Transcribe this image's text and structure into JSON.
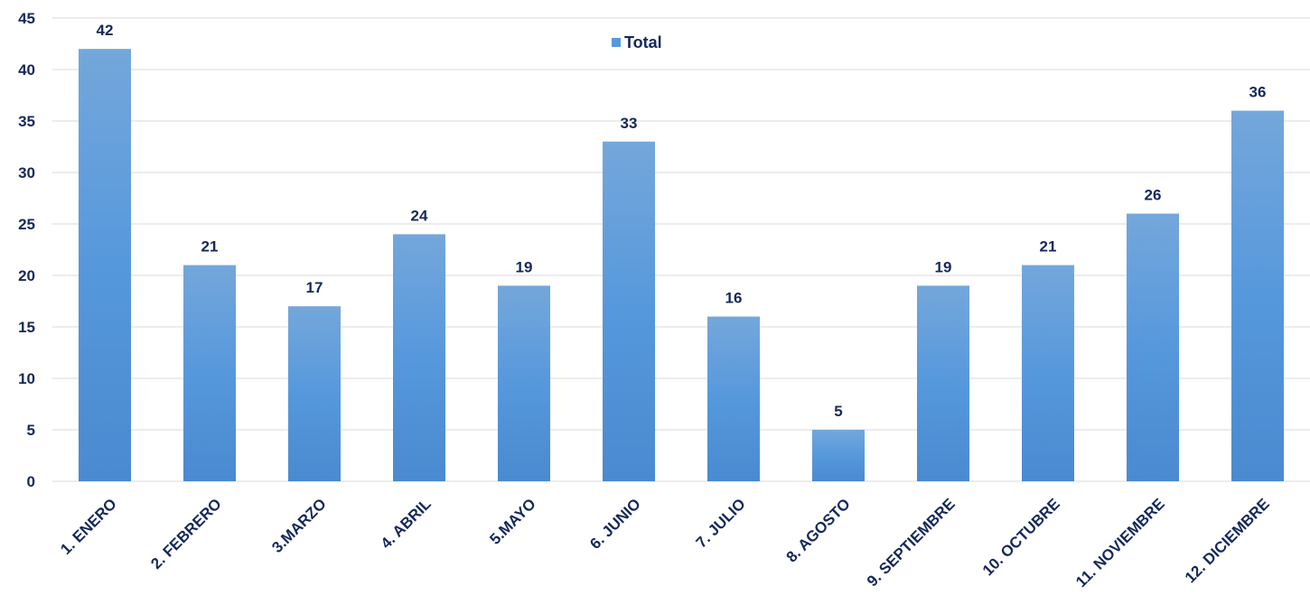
{
  "chart_data": {
    "type": "bar",
    "title": "",
    "xlabel": "",
    "ylabel": "",
    "categories": [
      "1. ENERO",
      "2. FEBRERO",
      "3.MARZO",
      "4. ABRIL",
      "5.MAYO",
      "6. JUNIO",
      "7. JULIO",
      "8. AGOSTO",
      "9. SEPTIEMBRE",
      "10. OCTUBRE",
      "11. NOVIEMBRE",
      "12. DICIEMBRE"
    ],
    "series": [
      {
        "name": "Total",
        "values": [
          42,
          21,
          17,
          24,
          19,
          33,
          16,
          5,
          19,
          21,
          26,
          36
        ]
      }
    ],
    "ylim": [
      0,
      45
    ],
    "yticks": [
      0,
      5,
      10,
      15,
      20,
      25,
      30,
      35,
      40,
      45
    ],
    "grid": true,
    "legend_position": "top-center",
    "data_labels": true,
    "colors": {
      "bar_light": "#74a7db",
      "bar_mid": "#5698dc",
      "bar_dark": "#4a8ad0",
      "text": "#14285a",
      "grid": "#d9d9d9"
    }
  }
}
